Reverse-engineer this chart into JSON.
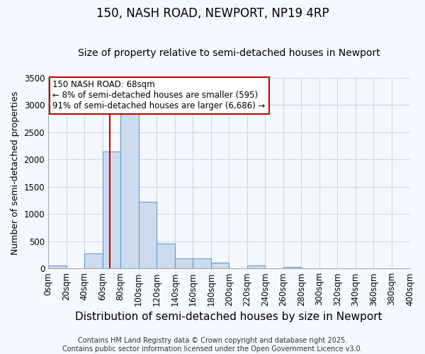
{
  "title": "150, NASH ROAD, NEWPORT, NP19 4RP",
  "subtitle": "Size of property relative to semi-detached houses in Newport",
  "xlabel": "Distribution of semi-detached houses by size in Newport",
  "ylabel": "Number of semi-detached properties",
  "bins": [
    0,
    20,
    40,
    60,
    80,
    100,
    120,
    140,
    160,
    180,
    200,
    220,
    240,
    260,
    280,
    300,
    320,
    340,
    360,
    380,
    400
  ],
  "counts": [
    50,
    0,
    275,
    2150,
    2900,
    1220,
    460,
    185,
    185,
    105,
    0,
    55,
    0,
    35,
    0,
    0,
    0,
    0,
    0,
    0
  ],
  "bar_color": "#ccdcee",
  "bar_edge_color": "#6699cc",
  "vline_x": 68,
  "vline_color": "#cc0000",
  "ylim": [
    0,
    3500
  ],
  "annotation_text": "150 NASH ROAD: 68sqm\n← 8% of semi-detached houses are smaller (595)\n91% of semi-detached houses are larger (6,686) →",
  "annotation_box_color": "#ffffff",
  "annotation_box_edge": "#cc0000",
  "footer1": "Contains HM Land Registry data © Crown copyright and database right 2025.",
  "footer2": "Contains public sector information licensed under the Open Government Licence v3.0.",
  "bg_color": "#f5f8ff",
  "grid_color": "#c8d8f0",
  "title_fontsize": 12,
  "subtitle_fontsize": 10,
  "xlabel_fontsize": 11,
  "ylabel_fontsize": 9,
  "tick_fontsize": 8.5,
  "footer_fontsize": 7,
  "annot_fontsize": 8.5
}
